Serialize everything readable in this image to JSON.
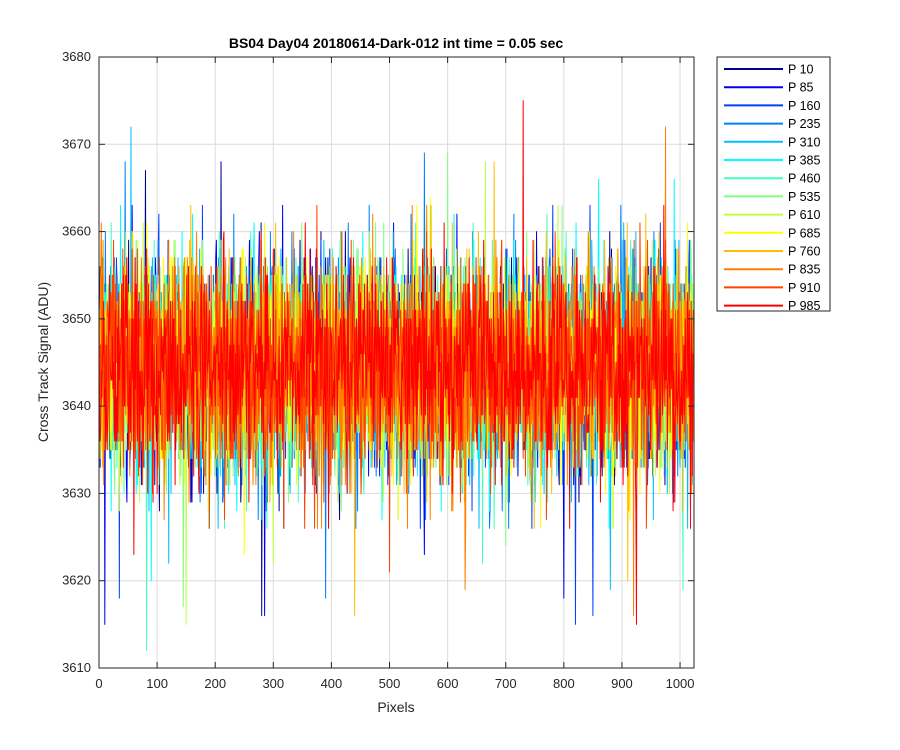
{
  "chart_data": {
    "type": "line",
    "title": "BS04 Day04 20180614-Dark-012 int time = 0.05 sec",
    "xlabel": "Pixels",
    "ylabel": "Cross Track Signal (ADU)",
    "xlim": [
      0,
      1024
    ],
    "ylim": [
      3610,
      3680
    ],
    "xticks": [
      0,
      100,
      200,
      300,
      400,
      500,
      600,
      700,
      800,
      900,
      1000
    ],
    "yticks": [
      3610,
      3620,
      3630,
      3640,
      3650,
      3660,
      3670,
      3680
    ],
    "grid": true,
    "legend_position": "outside-top-right",
    "n_points": 1024,
    "series": [
      {
        "name": "P 10",
        "color": "#00008f",
        "mean": 3644.5,
        "noise": 8.0,
        "extremes": [
          [
            80,
            3667
          ],
          [
            210,
            3668
          ],
          [
            280,
            3616
          ]
        ]
      },
      {
        "name": "P 85",
        "color": "#0000ef",
        "mean": 3644.5,
        "noise": 8.0,
        "extremes": [
          [
            10,
            3615
          ],
          [
            285,
            3616
          ],
          [
            560,
            3623
          ],
          [
            800,
            3618
          ]
        ]
      },
      {
        "name": "P 160",
        "color": "#0040ff",
        "mean": 3644.5,
        "noise": 8.0,
        "extremes": [
          [
            35,
            3618
          ],
          [
            820,
            3615
          ],
          [
            850,
            3616
          ]
        ]
      },
      {
        "name": "P 235",
        "color": "#0080ff",
        "mean": 3644.5,
        "noise": 8.0,
        "extremes": [
          [
            45,
            3668
          ],
          [
            560,
            3669
          ],
          [
            390,
            3618
          ]
        ]
      },
      {
        "name": "P 310",
        "color": "#00bfff",
        "mean": 3644.5,
        "noise": 8.0,
        "extremes": [
          [
            55,
            3672
          ],
          [
            120,
            3622
          ],
          [
            880,
            3619
          ]
        ]
      },
      {
        "name": "P 385",
        "color": "#00ffff",
        "mean": 3644.5,
        "noise": 8.0,
        "extremes": [
          [
            90,
            3620
          ],
          [
            860,
            3666
          ],
          [
            990,
            3666
          ]
        ]
      },
      {
        "name": "P 460",
        "color": "#40ffbf",
        "mean": 3644.5,
        "noise": 8.0,
        "extremes": [
          [
            82,
            3612
          ],
          [
            660,
            3622
          ],
          [
            1005,
            3619
          ]
        ]
      },
      {
        "name": "P 535",
        "color": "#80ff80",
        "mean": 3644.5,
        "noise": 8.0,
        "extremes": [
          [
            600,
            3669
          ],
          [
            145,
            3617
          ],
          [
            700,
            3624
          ]
        ]
      },
      {
        "name": "P 610",
        "color": "#bfff40",
        "mean": 3644.5,
        "noise": 8.0,
        "extremes": [
          [
            150,
            3615
          ],
          [
            300,
            3622
          ],
          [
            665,
            3668
          ]
        ]
      },
      {
        "name": "P 685",
        "color": "#ffff00",
        "mean": 3644.5,
        "noise": 8.0,
        "extremes": [
          [
            250,
            3623
          ],
          [
            570,
            3664
          ],
          [
            760,
            3626
          ]
        ]
      },
      {
        "name": "P 760",
        "color": "#ffbf00",
        "mean": 3644.5,
        "noise": 8.0,
        "extremes": [
          [
            440,
            3616
          ],
          [
            680,
            3668
          ],
          [
            910,
            3620
          ]
        ]
      },
      {
        "name": "P 835",
        "color": "#ff8000",
        "mean": 3644.5,
        "noise": 8.0,
        "extremes": [
          [
            975,
            3672
          ],
          [
            630,
            3619
          ],
          [
            920,
            3616
          ]
        ]
      },
      {
        "name": "P 910",
        "color": "#ff4000",
        "mean": 3644.5,
        "noise": 8.0,
        "extremes": [
          [
            500,
            3621
          ],
          [
            770,
            3627
          ]
        ]
      },
      {
        "name": "P 985",
        "color": "#ff0000",
        "mean": 3644.5,
        "noise": 8.0,
        "extremes": [
          [
            730,
            3675
          ],
          [
            925,
            3615
          ],
          [
            60,
            3623
          ]
        ]
      }
    ]
  }
}
